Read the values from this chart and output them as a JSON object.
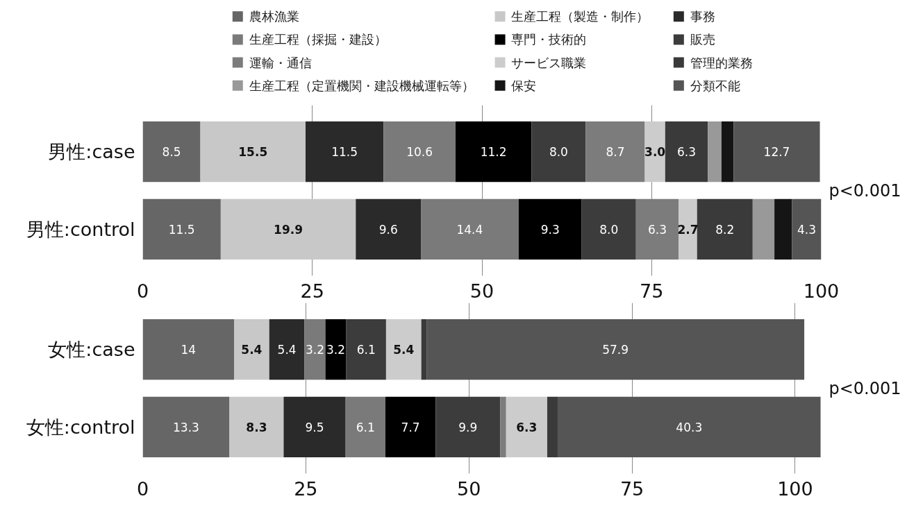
{
  "chart_data": [
    {
      "type": "bar",
      "orientation": "horizontal",
      "stacked": true,
      "legend": "top",
      "categories": [
        "男性:case",
        "男性:control"
      ],
      "xlim": [
        0,
        100
      ],
      "xticks": [
        0,
        25,
        50,
        75,
        100
      ],
      "grid": "x",
      "annotations": [
        "p<0.001"
      ],
      "series": [
        {
          "name": "農林漁業",
          "color": "#666666",
          "values": [
            8.5,
            11.5
          ],
          "value_labels": [
            "8.5",
            "11.5"
          ]
        },
        {
          "name": "生産工程（製造・制作）",
          "color": "#c8c8c8",
          "values": [
            15.5,
            19.9
          ],
          "value_labels": [
            "15.5",
            "19.9"
          ]
        },
        {
          "name": "事務",
          "color": "#2a2a2a",
          "values": [
            11.5,
            9.6
          ],
          "value_labels": [
            "11.5",
            "9.6"
          ]
        },
        {
          "name": "生産工程（採掘・建設）",
          "color": "#7a7a7a",
          "values": [
            10.6,
            14.4
          ],
          "value_labels": [
            "10.6",
            "14.4"
          ]
        },
        {
          "name": "専門・技術的",
          "color": "#000000",
          "values": [
            11.2,
            9.3
          ],
          "value_labels": [
            "11.2",
            "9.3"
          ]
        },
        {
          "name": "販売",
          "color": "#3c3c3c",
          "values": [
            8.0,
            8.0
          ],
          "value_labels": [
            "8.0",
            "8.0"
          ]
        },
        {
          "name": "運輸・通信",
          "color": "#7c7c7c",
          "values": [
            8.7,
            6.3
          ],
          "value_labels": [
            "8.7",
            "6.3"
          ]
        },
        {
          "name": "サービス職業",
          "color": "#cccccc",
          "values": [
            3.0,
            2.7
          ],
          "value_labels": [
            "3.0",
            "2.7"
          ]
        },
        {
          "name": "管理的業務",
          "color": "#3a3a3a",
          "values": [
            6.3,
            8.2
          ],
          "value_labels": [
            "6.3",
            "8.2"
          ]
        },
        {
          "name": "生産工程（定置機関・建設機械運転等）",
          "color": "#999999",
          "values": [
            2.0,
            3.2
          ],
          "value_labels": [
            null,
            null
          ]
        },
        {
          "name": "保安",
          "color": "#151515",
          "values": [
            1.8,
            2.6
          ],
          "value_labels": [
            null,
            null
          ]
        },
        {
          "name": "分類不能",
          "color": "#555555",
          "values": [
            12.7,
            4.3
          ],
          "value_labels": [
            "12.7",
            "4.3"
          ]
        }
      ]
    },
    {
      "type": "bar",
      "orientation": "horizontal",
      "stacked": true,
      "categories": [
        "女性:case",
        "女性:control"
      ],
      "xlim": [
        0,
        104
      ],
      "xticks": [
        0,
        25,
        50,
        75,
        100
      ],
      "grid": "x",
      "annotations": [
        "p<0.001"
      ],
      "series": [
        {
          "color": "#666666",
          "values": [
            14,
            13.3
          ],
          "value_labels": [
            "14",
            "13.3"
          ]
        },
        {
          "color": "#c8c8c8",
          "values": [
            5.4,
            8.3
          ],
          "value_labels": [
            "5.4",
            "8.3"
          ]
        },
        {
          "color": "#2a2a2a",
          "values": [
            5.4,
            9.5
          ],
          "value_labels": [
            "5.4",
            "9.5"
          ]
        },
        {
          "color": "#7a7a7a",
          "values": [
            3.2,
            6.1
          ],
          "value_labels": [
            "3.2",
            "6.1"
          ]
        },
        {
          "color": "#000000",
          "values": [
            3.2,
            7.7
          ],
          "value_labels": [
            "3.2",
            "7.7"
          ]
        },
        {
          "color": "#3c3c3c",
          "values": [
            6.1,
            9.9
          ],
          "value_labels": [
            "6.1",
            "9.9"
          ]
        },
        {
          "color": "#7c7c7c",
          "values": [
            null,
            0.9
          ],
          "value_labels": [
            null,
            null
          ]
        },
        {
          "color": "#cccccc",
          "values": [
            5.4,
            6.3
          ],
          "value_labels": [
            "5.4",
            "6.3"
          ]
        },
        {
          "color": "#3a3a3a",
          "values": [
            0.8,
            1.6
          ],
          "value_labels": [
            null,
            null
          ]
        },
        {
          "color": "#555555",
          "values": [
            57.9,
            40.3
          ],
          "value_labels": [
            "57.9",
            "40.3"
          ]
        }
      ]
    }
  ]
}
